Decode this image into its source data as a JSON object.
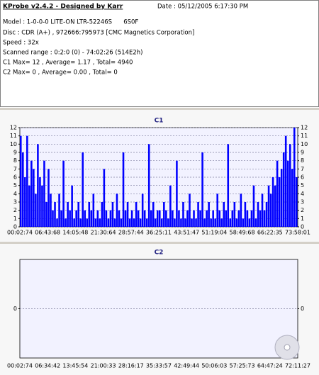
{
  "header": {
    "title": "KProbe v2.4.2 - Designed by Karr",
    "date": "Date : 05/12/2005 6:17:30 PM",
    "lines": [
      "Model : 1-0-0-0 LITE-ON LTR-52246S      6S0F",
      "Disc : CDR (A+) , 972666:795973 [CMC Magnetics Corporation]",
      "Speed : 32x",
      "Scanned range : 0:2:0 (0) - 74:02:26 (514E2h)",
      "C1 Max= 12 , Average= 1.17 , Total= 4940",
      "C2 Max= 0 , Average= 0.00 , Total= 0"
    ]
  },
  "chart_data": [
    {
      "type": "bar",
      "title": "C1",
      "color": "#0000ff",
      "grid": true,
      "ylim": [
        0,
        12
      ],
      "yticks": [
        0,
        1,
        2,
        3,
        4,
        5,
        6,
        7,
        8,
        9,
        10,
        11,
        12
      ],
      "xtick_labels": [
        "00:02:74",
        "06:43:68",
        "14:05:48",
        "21:30:64",
        "28:57:44",
        "36:25:11",
        "43:51:47",
        "51:19:04",
        "58:49:68",
        "66:22:35",
        "73:58:01"
      ],
      "values": [
        11,
        9,
        6,
        11,
        5,
        8,
        7,
        4,
        10,
        6,
        5,
        8,
        3,
        7,
        4,
        2,
        3,
        1,
        4,
        2,
        8,
        1,
        3,
        2,
        5,
        1,
        2,
        3,
        1,
        9,
        2,
        1,
        3,
        2,
        4,
        1,
        2,
        1,
        3,
        7,
        2,
        1,
        2,
        3,
        1,
        4,
        2,
        1,
        9,
        2,
        3,
        1,
        2,
        1,
        3,
        2,
        1,
        4,
        2,
        1,
        10,
        2,
        3,
        1,
        2,
        2,
        1,
        3,
        2,
        1,
        5,
        2,
        1,
        8,
        2,
        1,
        3,
        1,
        2,
        4,
        1,
        2,
        1,
        3,
        2,
        9,
        1,
        2,
        3,
        1,
        2,
        1,
        4,
        2,
        1,
        3,
        2,
        10,
        1,
        2,
        3,
        1,
        2,
        4,
        1,
        3,
        2,
        1,
        2,
        5,
        1,
        3,
        2,
        4,
        2,
        3,
        5,
        4,
        6,
        5,
        8,
        6,
        7,
        9,
        11,
        8,
        10,
        7,
        12,
        6
      ]
    },
    {
      "type": "bar",
      "title": "C2",
      "color": "#0000ff",
      "grid": true,
      "ylim": [
        -1,
        1
      ],
      "yticks": [
        0
      ],
      "xtick_labels": [
        "00:02:74",
        "06:34:42",
        "13:45:54",
        "21:00:33",
        "28:16:17",
        "35:33:57",
        "42:49:44",
        "50:06:03",
        "57:25:73",
        "64:47:24",
        "72:11:27"
      ],
      "values": []
    }
  ]
}
